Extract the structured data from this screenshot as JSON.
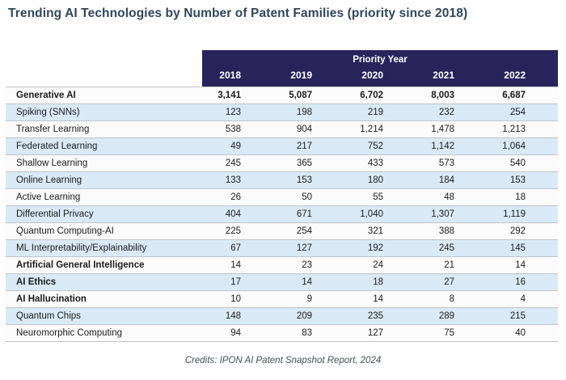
{
  "title": "Trending AI Technologies by Number of Patent Families (priority since 2018)",
  "credits": "Credits: IPON AI Patent Snapshot Report, 2024",
  "table": {
    "group_header": "Priority Year",
    "columns": [
      "2018",
      "2019",
      "2020",
      "2021",
      "2022"
    ],
    "bold_label_rows": [
      "Generative AI",
      "Artificial General Intelligence",
      "AI Ethics",
      "AI Hallucination"
    ],
    "bold_value_rows": [
      "Generative AI"
    ]
  },
  "chart_data": {
    "type": "table",
    "title": "Trending AI Technologies by Number of Patent Families (priority since 2018)",
    "categories": [
      "2018",
      "2019",
      "2020",
      "2021",
      "2022"
    ],
    "xlabel": "Priority Year",
    "series": [
      {
        "name": "Generative AI",
        "values": [
          3141,
          5087,
          6702,
          8003,
          6687
        ]
      },
      {
        "name": "Spiking (SNNs)",
        "values": [
          123,
          198,
          219,
          232,
          254
        ]
      },
      {
        "name": "Transfer Learning",
        "values": [
          538,
          904,
          1214,
          1478,
          1213
        ]
      },
      {
        "name": "Federated Learning",
        "values": [
          49,
          217,
          752,
          1142,
          1064
        ]
      },
      {
        "name": "Shallow Learning",
        "values": [
          245,
          365,
          433,
          573,
          540
        ]
      },
      {
        "name": "Online Learning",
        "values": [
          133,
          153,
          180,
          184,
          153
        ]
      },
      {
        "name": "Active Learning",
        "values": [
          26,
          50,
          55,
          48,
          18
        ]
      },
      {
        "name": "Differential Privacy",
        "values": [
          404,
          671,
          1040,
          1307,
          1119
        ]
      },
      {
        "name": "Quantum Computing-AI",
        "values": [
          225,
          254,
          321,
          388,
          292
        ]
      },
      {
        "name": "ML Interpretability/Explainability",
        "values": [
          67,
          127,
          192,
          245,
          145
        ]
      },
      {
        "name": "Artificial General Intelligence",
        "values": [
          14,
          23,
          24,
          21,
          14
        ]
      },
      {
        "name": "AI Ethics",
        "values": [
          17,
          14,
          18,
          27,
          16
        ]
      },
      {
        "name": "AI Hallucination",
        "values": [
          10,
          9,
          14,
          8,
          4
        ]
      },
      {
        "name": "Quantum Chips",
        "values": [
          148,
          209,
          235,
          289,
          215
        ]
      },
      {
        "name": "Neuromorphic Computing",
        "values": [
          94,
          83,
          127,
          75,
          40
        ]
      }
    ],
    "source": "Credits: IPON AI Patent Snapshot Report, 2024"
  },
  "colors": {
    "header_bg": "#29235c",
    "header_text": "#ffffff",
    "alt_row_bg": "#d9eaf6",
    "row_bg": "#fbfbfb",
    "border": "#c0c4c8",
    "title": "#31465c",
    "credits": "#454f57"
  }
}
